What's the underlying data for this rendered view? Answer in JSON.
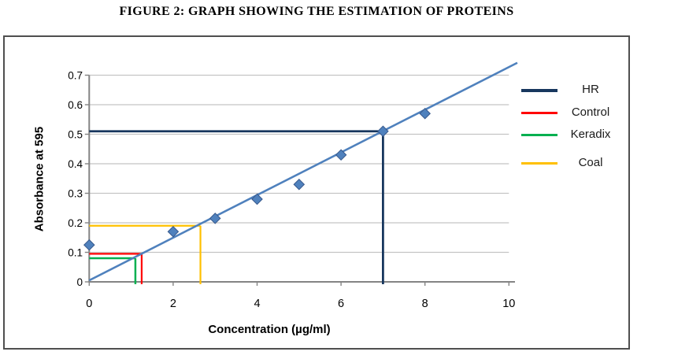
{
  "figure_title": "FIGURE 2: GRAPH SHOWING THE ESTIMATION OF PROTEINS",
  "chart_data": {
    "type": "scatter",
    "title": "FIGURE 2: GRAPH SHOWING THE ESTIMATION OF PROTEINS",
    "xlabel": "Concentration (µg/ml)",
    "ylabel": "Absorbance at 595",
    "xlim": [
      0,
      10
    ],
    "ylim": [
      0,
      0.7
    ],
    "x_ticks": [
      0,
      2,
      4,
      6,
      8,
      10
    ],
    "y_ticks": [
      0,
      0.1,
      0.2,
      0.3,
      0.4,
      0.5,
      0.6,
      0.7
    ],
    "grid": "horizontal",
    "legend_position": "right",
    "standard_curve_points": {
      "x": [
        0,
        2,
        3,
        4,
        5,
        6,
        7,
        8
      ],
      "y": [
        0.125,
        0.17,
        0.215,
        0.28,
        0.33,
        0.43,
        0.51,
        0.57
      ]
    },
    "trendline": {
      "x_start": 0,
      "y_start": 0.005,
      "x_end": 10.2,
      "y_end": 0.742
    },
    "series": [
      {
        "name": "HR",
        "color": "#17375e",
        "absorbance": 0.51,
        "concentration": 7.0
      },
      {
        "name": "Control",
        "color": "#ff0000",
        "absorbance": 0.095,
        "concentration": 1.25
      },
      {
        "name": "Keradix",
        "color": "#00b050",
        "absorbance": 0.08,
        "concentration": 1.1
      },
      {
        "name": "Coal",
        "color": "#ffc000",
        "absorbance": 0.19,
        "concentration": 2.65
      }
    ]
  },
  "colors": {
    "marker_fill": "#4f81bd",
    "marker_border": "#38598c",
    "trendline": "#4f81bd",
    "gridline": "#c4c4c4",
    "axis": "#848484",
    "chart_border": "#4f4f4f",
    "text": "#000000"
  }
}
